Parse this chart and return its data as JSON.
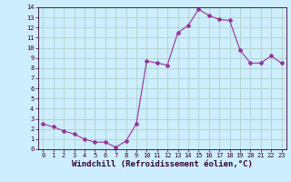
{
  "x": [
    0,
    1,
    2,
    3,
    4,
    5,
    6,
    7,
    8,
    9,
    10,
    11,
    12,
    13,
    14,
    15,
    16,
    17,
    18,
    19,
    20,
    21,
    22,
    23
  ],
  "y": [
    2.5,
    2.2,
    1.8,
    1.5,
    1.0,
    0.7,
    0.7,
    0.2,
    0.8,
    2.5,
    8.7,
    8.5,
    8.3,
    11.5,
    12.2,
    13.8,
    13.2,
    12.8,
    12.7,
    9.8,
    8.5,
    8.5,
    9.2,
    8.5
  ],
  "xlim": [
    -0.5,
    23.5
  ],
  "ylim": [
    0,
    14
  ],
  "yticks": [
    0,
    1,
    2,
    3,
    4,
    5,
    6,
    7,
    8,
    9,
    10,
    11,
    12,
    13,
    14
  ],
  "xticks": [
    0,
    1,
    2,
    3,
    4,
    5,
    6,
    7,
    8,
    9,
    10,
    11,
    12,
    13,
    14,
    15,
    16,
    17,
    18,
    19,
    20,
    21,
    22,
    23
  ],
  "xlabel": "Windchill (Refroidissement éolien,°C)",
  "line_color": "#993399",
  "marker": "D",
  "marker_size": 2,
  "bg_color": "#cceeff",
  "grid_color": "#aaccbb",
  "tick_fontsize": 5,
  "label_fontsize": 6.5
}
